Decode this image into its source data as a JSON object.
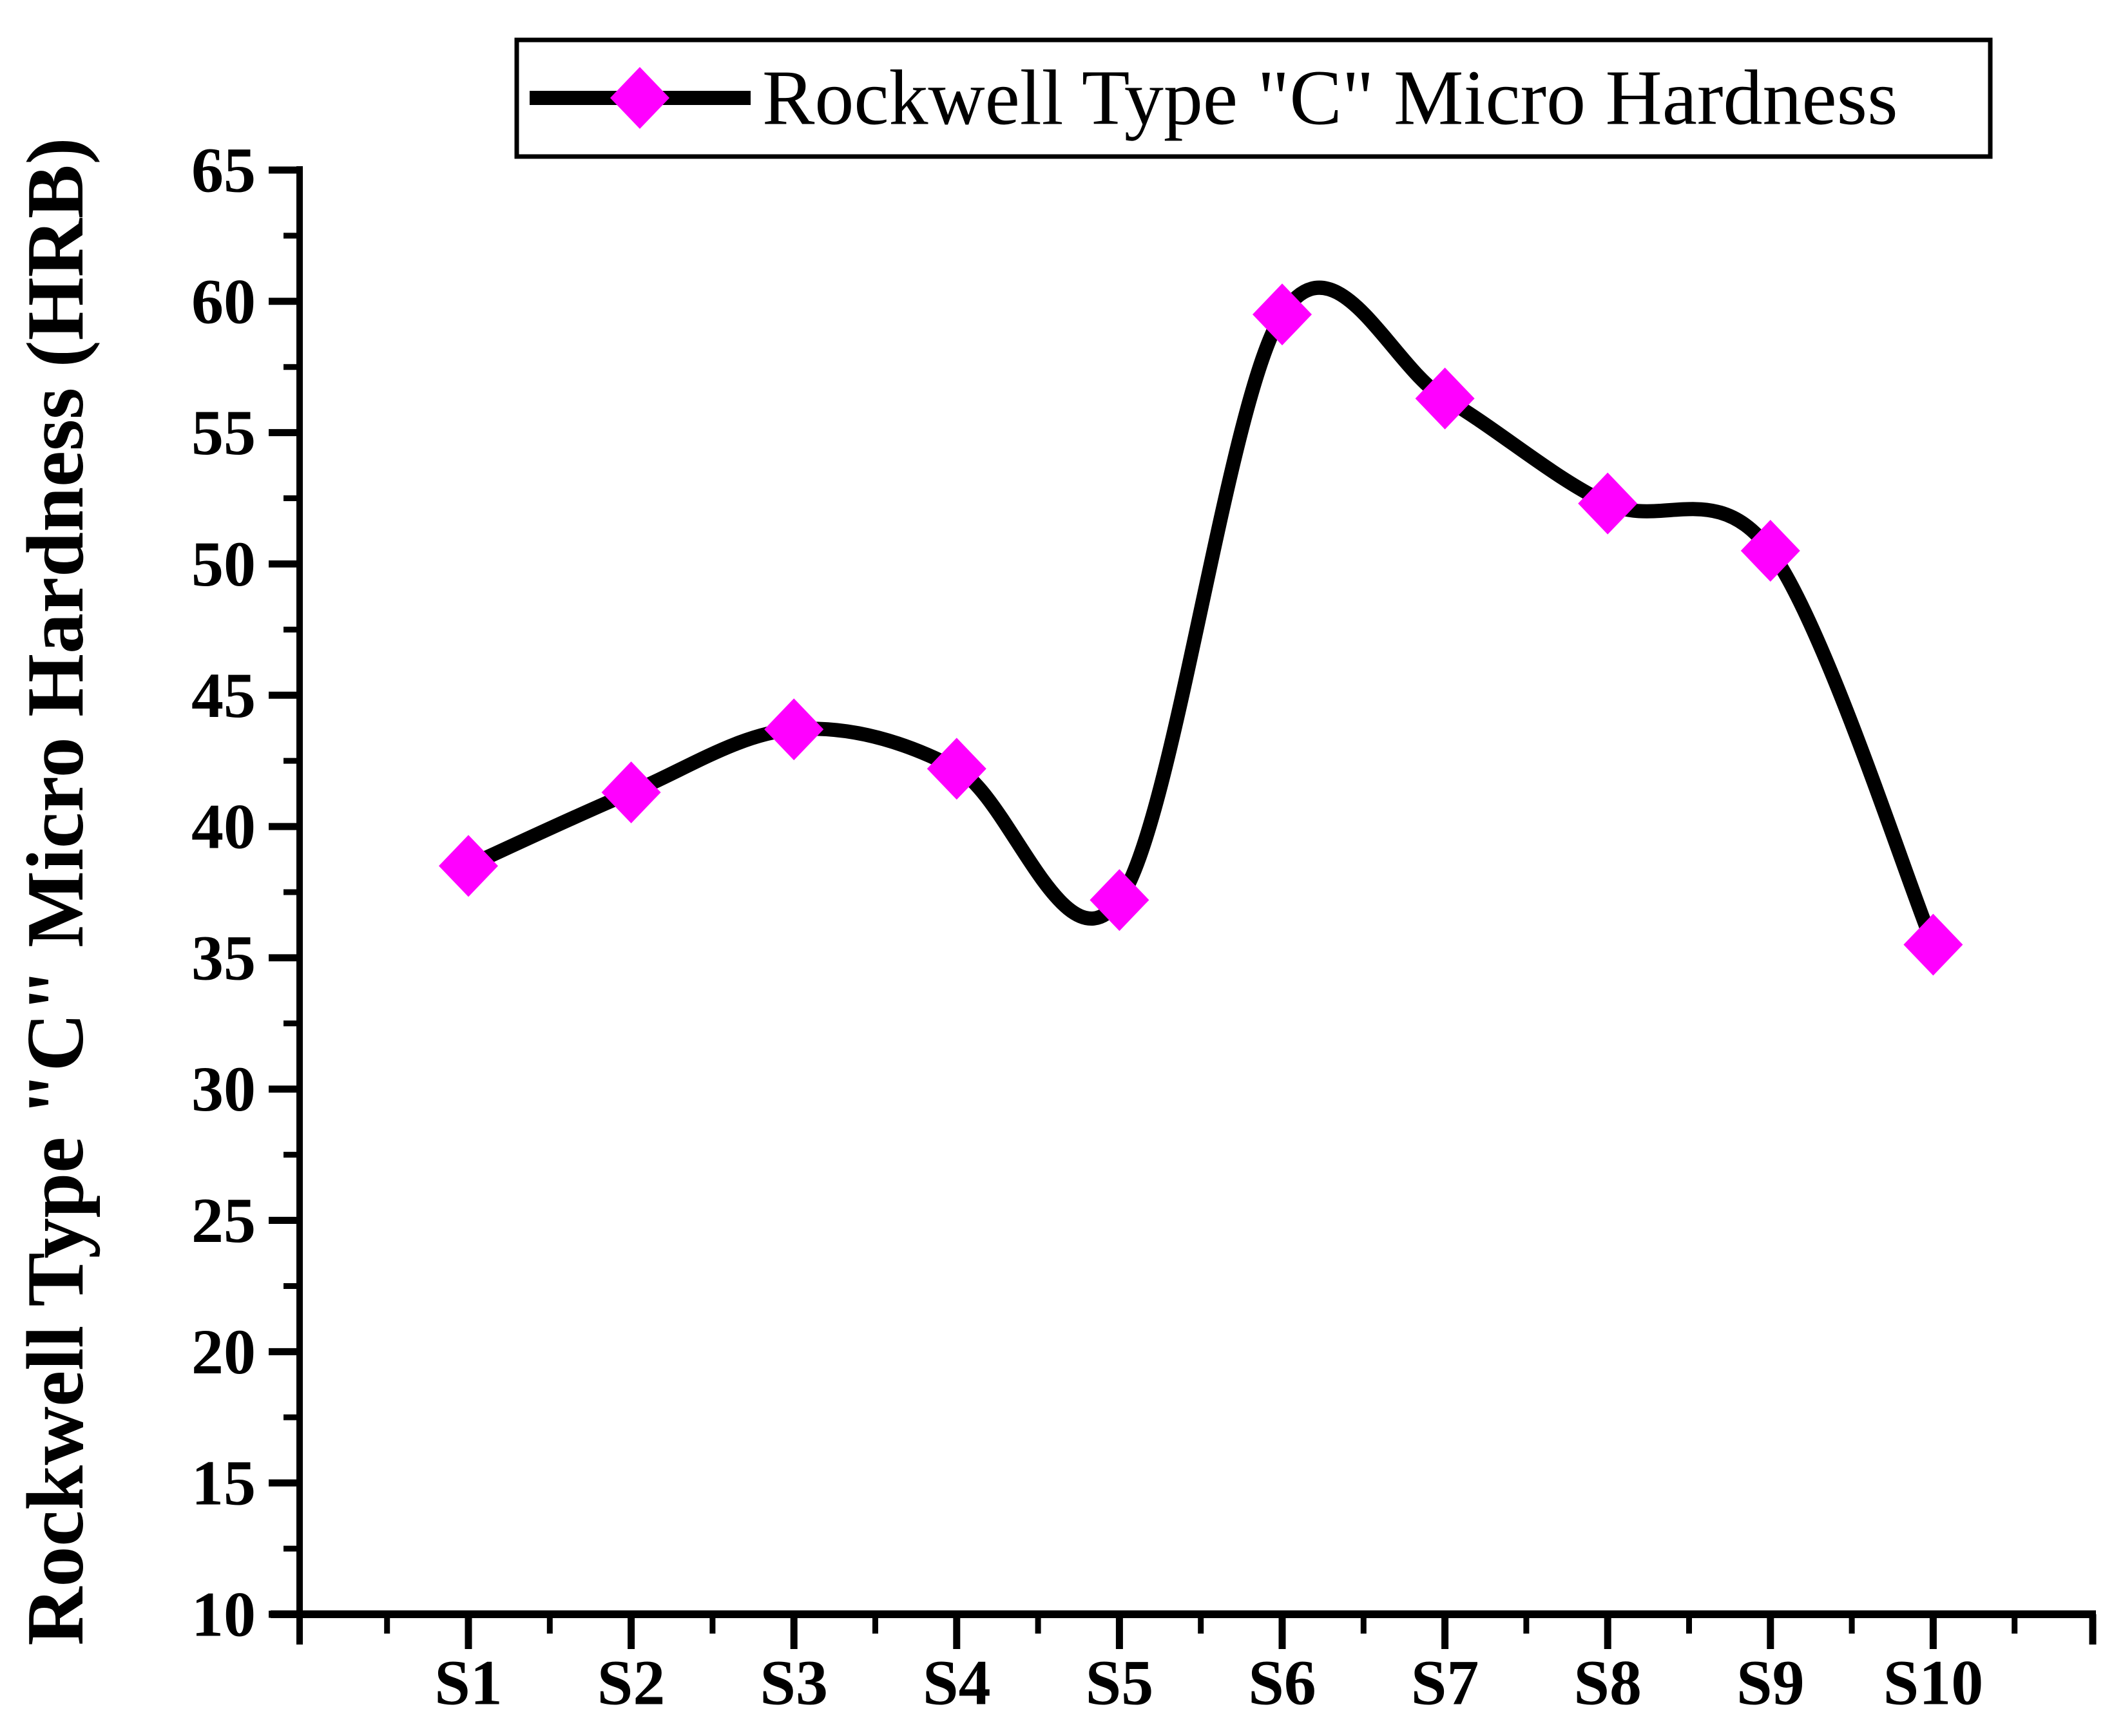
{
  "figure": {
    "background": "#ffffff"
  },
  "chart_data": {
    "type": "line",
    "title": "",
    "categories": [
      "S1",
      "S2",
      "S3",
      "S4",
      "S5",
      "S6",
      "S7",
      "S8",
      "S9",
      "S10"
    ],
    "series": [
      {
        "name": "Rockwell Type \"C\" Micro Hardness",
        "values": [
          38.5,
          41.3,
          43.7,
          42.2,
          37.2,
          59.5,
          56.3,
          52.3,
          50.5,
          35.5
        ],
        "line_color": "#000000",
        "marker": "diamond",
        "marker_color": "#FF00FF",
        "smooth": true
      }
    ],
    "xlabel": "",
    "ylabel": "Rockwell Type \"C\" Micro Hardness (HRB)",
    "ylim": [
      10,
      65
    ],
    "y_major_ticks": [
      10,
      15,
      20,
      25,
      30,
      35,
      40,
      45,
      50,
      55,
      60,
      65
    ],
    "y_minor_ticks": [
      12.5,
      17.5,
      22.5,
      27.5,
      32.5,
      37.5,
      42.5,
      47.5,
      52.5,
      57.5,
      62.5
    ],
    "x_minor_between_categories": true,
    "grid": false,
    "legend": {
      "position": "top",
      "border": true,
      "label": "Rockwell Type \"C\" Micro Hardness"
    },
    "colors": {
      "axis": "#000000",
      "curve": "#000000",
      "marker_fill": "#FF00FF",
      "background": "#ffffff"
    }
  }
}
